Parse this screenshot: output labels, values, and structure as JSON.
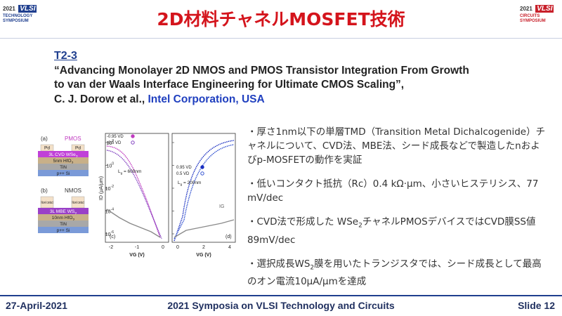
{
  "header": {
    "title": "2D材料チャネルMOSFET技術",
    "logo_left": {
      "year": "2021",
      "name": "VLSI",
      "line1": "TECHNOLOGY",
      "line2": "SYMPOSIUM"
    },
    "logo_right": {
      "year": "2021",
      "name": "VLSI",
      "line1": "CIRCUITS",
      "line2": "SYMPOSIUM"
    }
  },
  "paper": {
    "id": "T2-3",
    "title_lines": [
      "“Advancing Monolayer 2D NMOS and PMOS Transistor Integration From Growth",
      "to van der Waals Interface Engineering for Ultimate CMOS Scaling”,"
    ],
    "authors": "C. J. Dorow et al., ",
    "affiliation": "Intel Corporation, USA"
  },
  "figure": {
    "pmos": {
      "tag": "(a)",
      "label": "PMOS",
      "contacts": [
        "Pd",
        "Pd"
      ],
      "layers": [
        [
          "3L CVD WSe",
          "2"
        ],
        [
          "5nm HfO",
          "2"
        ],
        [
          "TiN"
        ],
        [
          "p++ Si"
        ]
      ]
    },
    "nmos": {
      "tag": "(b)",
      "label": "NMOS",
      "contacts": [
        "Novel contact",
        "Novel contact"
      ],
      "layers": [
        [
          "3L MBE WS",
          "2"
        ],
        [
          "10nm HfO",
          "2"
        ],
        [
          "TiN"
        ],
        [
          "p++ Si"
        ]
      ]
    },
    "y_label": "ID (μA/μm)",
    "y_ticks": [
      {
        "base": "10",
        "exp": "2"
      },
      {
        "base": "10",
        "exp": "0"
      },
      {
        "base": "10",
        "exp": "-2"
      },
      {
        "base": "10",
        "exp": "-4"
      },
      {
        "base": "10",
        "exp": "-6"
      }
    ],
    "plot_c": {
      "tag": "(c)",
      "legend": [
        "-0.95 VD",
        "-0.5 VD"
      ],
      "lg": "L",
      "lg_sub": "g",
      "lg_val": " = 600nm",
      "x_ticks": [
        "-2",
        "-1",
        "0"
      ],
      "x_label": "VG (V)"
    },
    "plot_d": {
      "tag": "(d)",
      "legend": [
        "0.95 VD",
        "0.5 VD"
      ],
      "lg": "L",
      "lg_sub": "g",
      "lg_val": " = 200nm",
      "ig": "IG",
      "x_ticks": [
        "0",
        "2",
        "4"
      ],
      "x_label": "VG (V)"
    }
  },
  "bullets": [
    [
      [
        "・厚さ1nm以下の単層TMD（Transition Metal Dichalcogenide）チャネルについて、CVD法、MBE法、シード成長などで製造したnおよびp-MOSFETの動作を実証"
      ]
    ],
    [
      [
        "・低いコンタクト抵抗（Rc）0.4 kΩ·µm、小さいヒステリシス、77 mV/dec"
      ]
    ],
    [
      [
        "・CVD法で形成した WSe",
        "2",
        "チャネルPMOSデバイスではCVD膜SS値89mV/dec"
      ]
    ],
    [
      [
        "・選択成長WS",
        "2",
        "膜を用いたトランジスタでは、シード成長として最高のオン電流10μA/μmを達成"
      ]
    ]
  ],
  "footer": {
    "date": "27-April-2021",
    "event": "2021 Symposia on VLSI Technology and Circuits",
    "slide": "Slide 12"
  }
}
